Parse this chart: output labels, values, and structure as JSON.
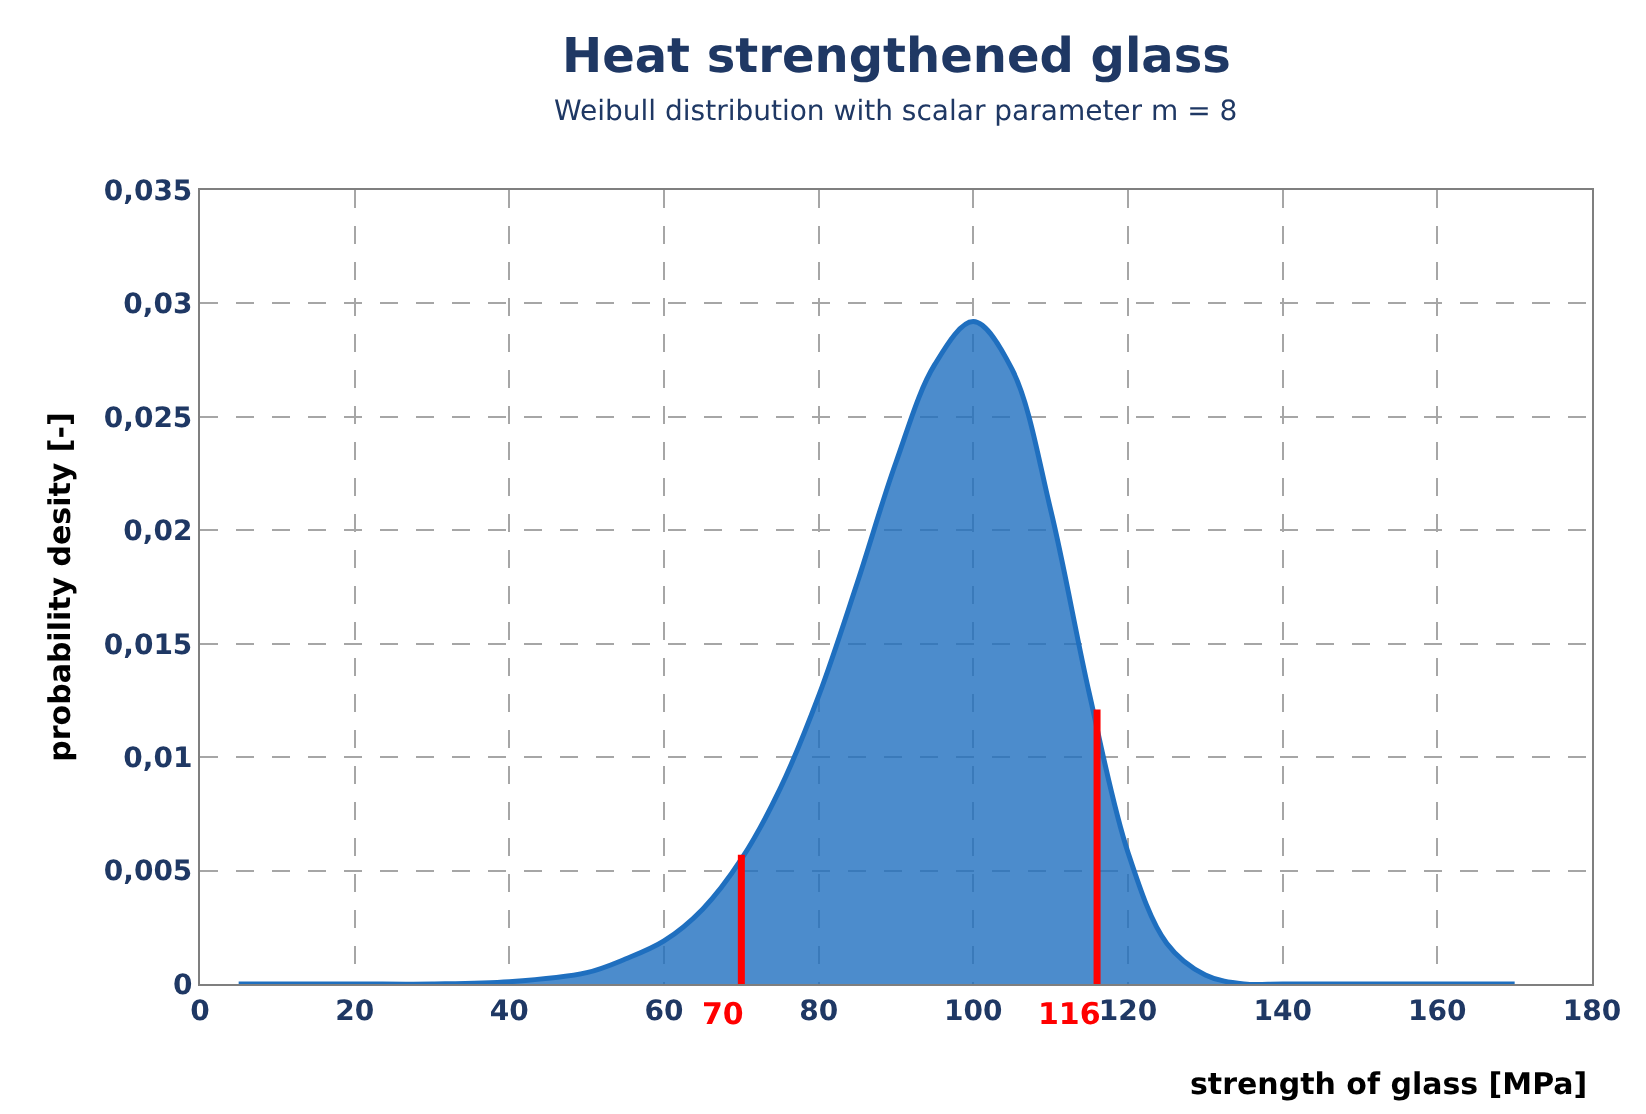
{
  "chart_data": {
    "type": "area",
    "title": "Heat strengthened glass",
    "subtitle": "Weibull distribution with scalar parameter m = 8",
    "xlabel": "strength of glass [MPa]",
    "ylabel": "probability desity [-]",
    "series": [
      {
        "color": "#1f6fbf",
        "x": [
          5,
          20,
          30,
          40,
          50,
          55,
          60,
          65,
          70,
          75,
          80,
          85,
          90,
          95,
          100,
          105,
          110,
          115,
          120,
          125,
          130,
          135,
          140,
          150,
          160,
          170
        ],
        "values": [
          0,
          0,
          0,
          0.0001,
          0.0005,
          0.0011,
          0.0019,
          0.0033,
          0.0055,
          0.0086,
          0.0127,
          0.0177,
          0.023,
          0.0273,
          0.0292,
          0.0271,
          0.0209,
          0.0128,
          0.0058,
          0.0018,
          0.0004,
          0,
          0,
          0,
          0,
          0
        ]
      },
      {
        "type": "line",
        "color": "#ff0000",
        "x": [
          70,
          70
        ],
        "values": [
          0,
          0.0057
        ]
      },
      {
        "type": "line",
        "color": "#ff0000",
        "x": [
          116,
          116
        ],
        "values": [
          0,
          0.0121
        ]
      }
    ],
    "annotations": [
      {
        "text": "70",
        "x": 70,
        "y": 0
      },
      {
        "text": "116",
        "x": 116,
        "y": 0
      }
    ],
    "xlim": [
      0,
      180
    ],
    "xticks": [
      0,
      20,
      40,
      60,
      80,
      100,
      120,
      140,
      160,
      180
    ],
    "ylim": [
      0,
      0.035
    ],
    "yticks": [
      0,
      {
        "value": 0.005,
        "label": "0,005"
      },
      {
        "value": 0.01,
        "label": "0,01"
      },
      {
        "value": 0.015,
        "label": "0,015"
      },
      {
        "value": 0.02,
        "label": "0,02"
      },
      {
        "value": 0.025,
        "label": "0,025"
      },
      {
        "value": 0.03,
        "label": "0,03"
      },
      {
        "value": 0.035,
        "label": "0,035"
      }
    ],
    "grid": true,
    "line_style": "solid"
  }
}
